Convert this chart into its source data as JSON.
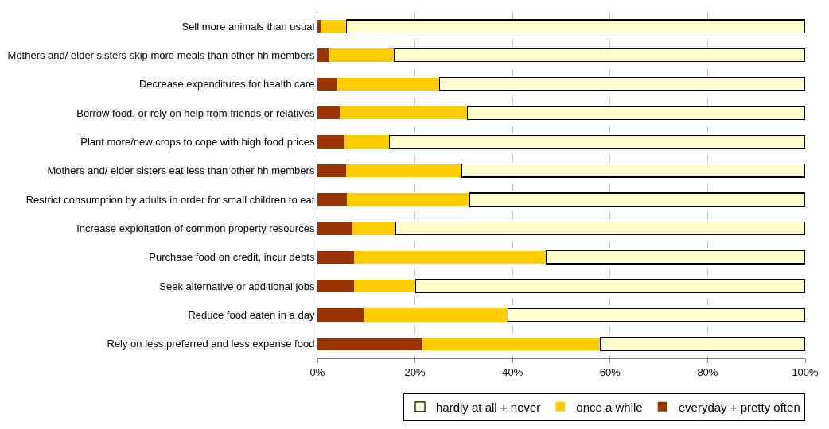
{
  "chart_data": {
    "type": "bar",
    "orientation": "horizontal",
    "stacked": true,
    "categories": [
      "Sell more animals than usual",
      "Mothers and/ elder sisters skip more meals than other hh members",
      "Decrease expenditures for health care",
      "Borrow food, or rely on help from friends or relatives",
      "Plant more/new crops to cope with high food prices",
      "Mothers and/ elder sisters eat less than other hh members",
      "Restrict consumption by adults in order for small children to eat",
      "Increase exploitation of common property resources",
      "Purchase food on credit, incur debts",
      "Seek alternative or additional jobs",
      "Reduce food eaten in a day",
      "Rely on less preferred and less expense food"
    ],
    "series": [
      {
        "name": "everyday + pretty often",
        "color": "#993300",
        "values": [
          0.6,
          2.3,
          4.0,
          4.6,
          5.6,
          5.9,
          6.1,
          7.1,
          7.5,
          7.5,
          9.4,
          21.5
        ]
      },
      {
        "name": "once a while",
        "color": "#ffcc00",
        "values": [
          5.3,
          13.4,
          21.1,
          26.2,
          9.1,
          23.7,
          25.1,
          8.9,
          39.4,
          12.6,
          29.7,
          36.5
        ]
      },
      {
        "name": "hardly at all + never",
        "color": "#ffffcc",
        "values": [
          94.1,
          84.3,
          74.9,
          69.2,
          85.3,
          70.4,
          68.8,
          84.0,
          53.1,
          79.9,
          60.9,
          42.0
        ]
      }
    ],
    "xlim": [
      0,
      100
    ],
    "xticks": [
      {
        "value": 0,
        "label": "0%"
      },
      {
        "value": 20,
        "label": "20%"
      },
      {
        "value": 40,
        "label": "40%"
      },
      {
        "value": 60,
        "label": "60%"
      },
      {
        "value": 80,
        "label": "80%"
      },
      {
        "value": 100,
        "label": "100%"
      }
    ],
    "grid": "x",
    "legend": "bottom"
  }
}
